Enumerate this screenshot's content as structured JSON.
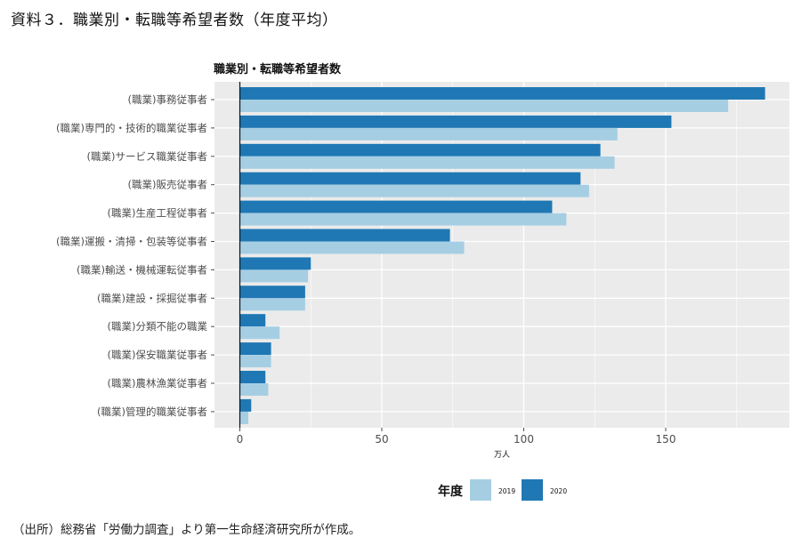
{
  "document": {
    "title": "資料３．職業別・転職等希望者数（年度平均）",
    "source": "（出所）総務省「労働力調査」より第一生命経済研究所が作成。"
  },
  "colors": {
    "y2019": "#a6cee3",
    "y2020": "#1f78b4",
    "panel": "#ebebeb",
    "grid": "#ffffff"
  },
  "chart_data": {
    "type": "bar",
    "orientation": "horizontal",
    "title": "職業別・転職等希望者数",
    "xlabel": "万人",
    "ylabel": "",
    "xlim": [
      0,
      190
    ],
    "xticks": [
      0,
      50,
      100,
      150
    ],
    "grid": true,
    "legend_title": "年度",
    "legend_position": "bottom",
    "categories": [
      "(職業)事務従事者",
      "(職業)専門的・技術的職業従事者",
      "(職業)サービス職業従事者",
      "(職業)販売従事者",
      "(職業)生産工程従事者",
      "(職業)運搬・清掃・包装等従事者",
      "(職業)輸送・機械運転従事者",
      "(職業)建設・採掘従事者",
      "(職業)分類不能の職業",
      "(職業)保安職業従事者",
      "(職業)農林漁業従事者",
      "(職業)管理的職業従事者"
    ],
    "series": [
      {
        "name": "2020",
        "values": [
          185,
          152,
          127,
          120,
          110,
          74,
          25,
          23,
          9,
          11,
          9,
          4
        ]
      },
      {
        "name": "2019",
        "values": [
          172,
          133,
          132,
          123,
          115,
          79,
          24,
          23,
          14,
          11,
          10,
          3
        ]
      }
    ]
  }
}
